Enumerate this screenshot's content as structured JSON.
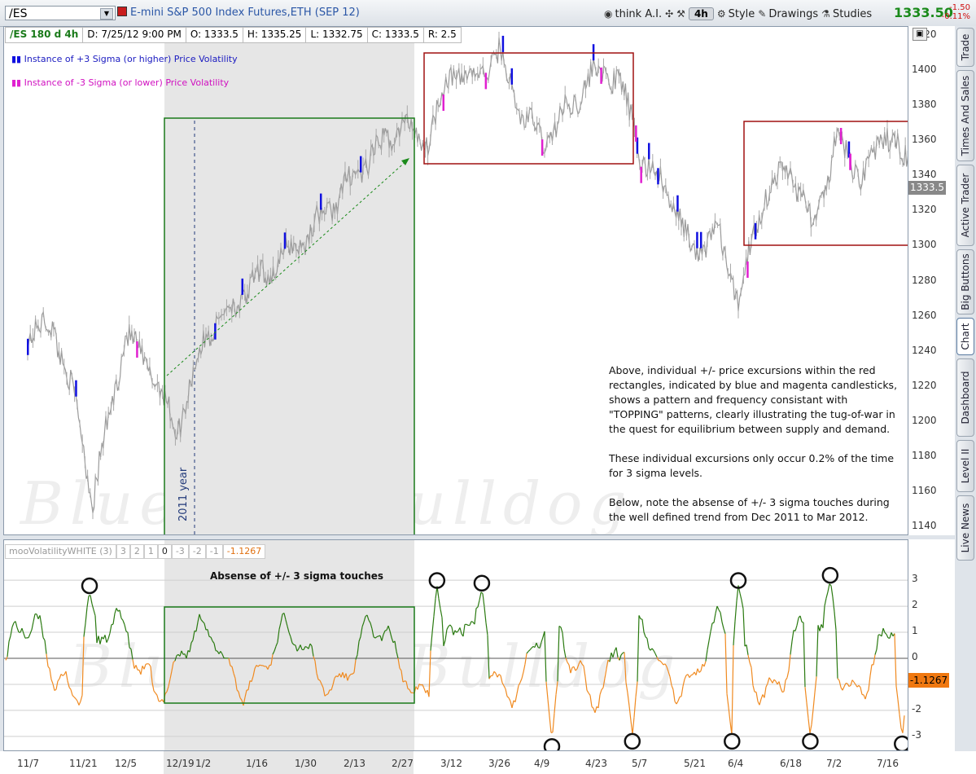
{
  "toolbar": {
    "symbol": "/ES",
    "symbol_name": "E-mini S&P 500 Index Futures,ETH (SEP 12)",
    "think_label": "think A.I.",
    "aggregation": "4h",
    "style_label": "Style",
    "drawings_label": "Drawings",
    "studies_label": "Studies",
    "last_price": "1333.50",
    "net_change": "-1.50",
    "pct_change": "-0.11%"
  },
  "infobar": {
    "title": "/ES 180 d 4h",
    "date": "D: 7/25/12 9:00 PM",
    "open": "O: 1333.5",
    "high": "H: 1335.25",
    "low": "L: 1332.75",
    "close": "C: 1333.5",
    "range": "R: 2.5"
  },
  "legend": {
    "plus": "Instance of +3 Sigma (or higher) Price Volatility",
    "minus": "Instance of -3 Sigma  (or lower) Price Volatility"
  },
  "annotations": {
    "year": "2011 year",
    "absense": "Absense of +/- 3 sigma touches",
    "note_p1": "Above, individual +/- price excursions within the red rectangles, indicated by blue and magenta candlesticks, shows a pattern and frequency consistant with \"TOPPING\" patterns, clearly illustrating the tug-of-war in the quest for equilibrium between supply and demand.",
    "note_p2": "These individual excursions only occur 0.2% of the time for 3 sigma levels.",
    "note_p3": "Below, note the absense of +/- 3 sigma touches during the well defined trend from Dec 2011 to Mar 2012.",
    "watermark": "Bluechip Bulldog"
  },
  "price_tag": "1333.5",
  "study": {
    "name": "mooVolatilityWHITE (3)",
    "p1": "3",
    "p2": "2",
    "p3": "1",
    "p4": "0",
    "p5": "-3",
    "p6": "-2",
    "p7": "-1",
    "value": "-1.1267"
  },
  "sidetabs": [
    "Trade",
    "Times And Sales",
    "Active Trader",
    "Big Buttons",
    "Chart",
    "Dashboard",
    "Level II",
    "Live News"
  ],
  "colors": {
    "up_sigma": "#1010e0",
    "down_sigma": "#e020d0",
    "osc_up": "#2a7a10",
    "osc_down": "#f08a20",
    "trend_box": "#1a7a1a",
    "top_box": "#a01010"
  },
  "chart_data": [
    {
      "type": "line",
      "y_ticks": [
        1420,
        1400,
        1380,
        1360,
        1340,
        1320,
        1300,
        1280,
        1260,
        1240,
        1220,
        1200,
        1180,
        1160,
        1140
      ],
      "ylim": [
        1135,
        1425
      ],
      "x_ticks": [
        "11/7",
        "11/21",
        "12/5",
        "12/19",
        "1/2",
        "1/16",
        "1/30",
        "2/13",
        "2/27",
        "3/12",
        "3/26",
        "4/9",
        "4/23",
        "5/7",
        "5/21",
        "6/4",
        "6/18",
        "7/2",
        "7/16"
      ],
      "series": [
        {
          "x": [
            "11/7",
            "11/14",
            "11/21",
            "11/25",
            "12/5",
            "12/12",
            "12/19",
            "1/2",
            "1/16",
            "1/30",
            "2/13",
            "2/27",
            "3/5",
            "3/12",
            "3/19",
            "3/26",
            "4/2",
            "4/9",
            "4/16",
            "4/23",
            "4/30",
            "5/7",
            "5/14",
            "5/21",
            "5/28",
            "6/4",
            "6/11",
            "6/18",
            "6/25",
            "7/2",
            "7/9",
            "7/16",
            "7/25"
          ],
          "values": [
            1250,
            1255,
            1200,
            1155,
            1250,
            1230,
            1195,
            1250,
            1280,
            1305,
            1340,
            1370,
            1360,
            1400,
            1395,
            1410,
            1375,
            1360,
            1380,
            1400,
            1395,
            1350,
            1330,
            1295,
            1310,
            1270,
            1330,
            1345,
            1310,
            1360,
            1340,
            1365,
            1333.5
          ]
        }
      ],
      "sigma_up_count": 18,
      "sigma_down_count": 11
    },
    {
      "type": "line",
      "title": "mooVolatilityWHITE (3)",
      "y_ticks": [
        3,
        2,
        1,
        0,
        -1,
        -2,
        -3
      ],
      "ylim": [
        -3.6,
        3.6
      ],
      "last_value": -1.1267,
      "touch_markers": [
        {
          "x": "11/24",
          "y": 2.6
        },
        {
          "x": "3/8",
          "y": 2.8
        },
        {
          "x": "3/21",
          "y": 2.7
        },
        {
          "x": "4/11",
          "y": -3.2
        },
        {
          "x": "5/4",
          "y": -3.0
        },
        {
          "x": "6/2",
          "y": -3.0
        },
        {
          "x": "6/4",
          "y": 2.8
        },
        {
          "x": "6/24",
          "y": -3.0
        },
        {
          "x": "6/30",
          "y": 3.0
        },
        {
          "x": "7/20",
          "y": -3.1
        }
      ]
    }
  ]
}
